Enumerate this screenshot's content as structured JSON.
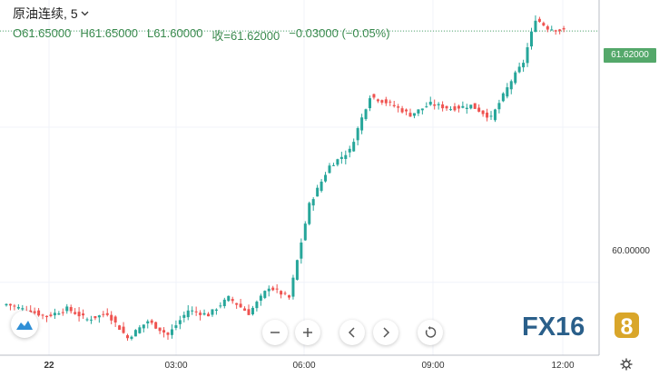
{
  "header": {
    "symbol": "原油连续",
    "interval": "5",
    "separator": ",",
    "open": "O61.65000",
    "high": "H61.65000",
    "low": "L61.60000",
    "close": "收=61.62000",
    "change": "−0.03000 (−0.05%)"
  },
  "price_tag": "61.62000",
  "y_label_60": "60.00000",
  "x_labels": [
    "22",
    "03:00",
    "06:00",
    "09:00",
    "12:00"
  ],
  "watermark": {
    "text": "FX168",
    "brand_color": "#2a5f8a",
    "accent_color": "#d9a62a"
  },
  "colors": {
    "up": "#26a69a",
    "down": "#ef5350",
    "price_tag": "#54a86a"
  },
  "controls": {
    "zoom_out_icon": "minus-icon",
    "zoom_in_icon": "plus-icon",
    "scroll_left_icon": "chevron-left-icon",
    "scroll_right_icon": "chevron-right-icon",
    "reset_icon": "reset-icon",
    "settings_icon": "gear-icon",
    "logo_icon": "tradingview-cloud-icon"
  },
  "chart_data": {
    "type": "candlestick",
    "ylim": [
      59.53,
      61.82
    ],
    "x_tick_labels": [
      "22",
      "03:00",
      "06:00",
      "09:00",
      "12:00"
    ],
    "grid": true,
    "last_price": 61.62,
    "key_points": [
      {
        "i": 0,
        "close": 59.86
      },
      {
        "i": 10,
        "close": 59.78
      },
      {
        "i": 15,
        "close": 59.83
      },
      {
        "i": 20,
        "close": 59.76
      },
      {
        "i": 25,
        "close": 59.8
      },
      {
        "i": 30,
        "close": 59.64
      },
      {
        "i": 35,
        "close": 59.75
      },
      {
        "i": 40,
        "close": 59.66
      },
      {
        "i": 45,
        "close": 59.82
      },
      {
        "i": 50,
        "close": 59.79
      },
      {
        "i": 55,
        "close": 59.9
      },
      {
        "i": 60,
        "close": 59.8
      },
      {
        "i": 65,
        "close": 59.97
      },
      {
        "i": 70,
        "close": 59.9
      },
      {
        "i": 75,
        "close": 60.5
      },
      {
        "i": 80,
        "close": 60.75
      },
      {
        "i": 85,
        "close": 60.85
      },
      {
        "i": 90,
        "close": 61.2
      },
      {
        "i": 95,
        "close": 61.15
      },
      {
        "i": 100,
        "close": 61.08
      },
      {
        "i": 105,
        "close": 61.15
      },
      {
        "i": 110,
        "close": 61.12
      },
      {
        "i": 115,
        "close": 61.14
      },
      {
        "i": 120,
        "close": 61.06
      },
      {
        "i": 125,
        "close": 61.3
      },
      {
        "i": 128,
        "close": 61.42
      },
      {
        "i": 131,
        "close": 61.7
      },
      {
        "i": 134,
        "close": 61.64
      },
      {
        "i": 138,
        "close": 61.62
      }
    ]
  }
}
